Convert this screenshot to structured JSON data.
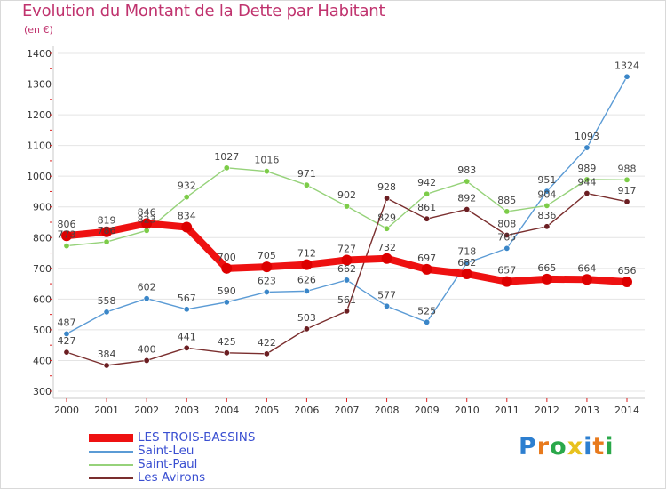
{
  "header": {
    "title": "Evolution du Montant de la Dette par Habitant",
    "subtitle": "(en €)"
  },
  "logo": {
    "text": "Proxiti",
    "letter_colors": [
      "#2d7fd0",
      "#e87a1d",
      "#2aa84a",
      "#e8c21d",
      "#2d7fd0",
      "#e87a1d",
      "#2aa84a"
    ]
  },
  "chart_data": {
    "type": "line",
    "x": [
      2000,
      2001,
      2002,
      2003,
      2004,
      2005,
      2006,
      2007,
      2008,
      2009,
      2010,
      2011,
      2012,
      2013,
      2014
    ],
    "ylim": [
      300,
      1400
    ],
    "yticks": [
      300,
      400,
      500,
      600,
      700,
      800,
      900,
      1000,
      1100,
      1200,
      1300,
      1400
    ],
    "grid": true,
    "legend_position": "bottom-left",
    "series": [
      {
        "name": "Saint-Leu",
        "color": "#5b9bd5",
        "point_color": "#3a86c8",
        "values": [
          487,
          558,
          602,
          567,
          590,
          623,
          626,
          662,
          577,
          525,
          718,
          765,
          951,
          1093,
          1324
        ],
        "labels": [
          "487",
          "558",
          "602",
          "567",
          "590",
          "623",
          "626",
          "662",
          "577",
          "525",
          "718",
          "765",
          "951",
          "1093",
          "1324"
        ]
      },
      {
        "name": "Saint-Paul",
        "color": "#96d27a",
        "point_color": "#7ccc48",
        "values": [
          773,
          786,
          823,
          932,
          1027,
          1016,
          971,
          902,
          829,
          942,
          983,
          885,
          904,
          989,
          988
        ],
        "labels": [
          "773",
          "786",
          "823",
          "932",
          "1027",
          "1016",
          "971",
          "902",
          "829",
          "942",
          "983",
          "885",
          "904",
          "989",
          "988"
        ]
      },
      {
        "name": "Les Avirons",
        "color": "#7a2e2e",
        "point_color": "#6b1e22",
        "values": [
          427,
          384,
          400,
          441,
          425,
          422,
          503,
          561,
          928,
          861,
          892,
          808,
          836,
          944,
          917
        ],
        "labels": [
          "427",
          "384",
          "400",
          "441",
          "425",
          "422",
          "503",
          "561",
          "928",
          "861",
          "892",
          "808",
          "836",
          "944",
          "917"
        ]
      },
      {
        "name": "LES TROIS-BASSINS",
        "color": "#ee1111",
        "point_color": "#dd0000",
        "values": [
          806,
          819,
          846,
          834,
          700,
          705,
          712,
          727,
          732,
          697,
          682,
          657,
          665,
          664,
          656
        ],
        "labels": [
          "806",
          "819",
          "846",
          "834",
          "700",
          "705",
          "712",
          "727",
          "732",
          "697",
          "682",
          "657",
          "665",
          "664",
          "656"
        ]
      }
    ],
    "legend_order": [
      "LES TROIS-BASSINS",
      "Saint-Leu",
      "Saint-Paul",
      "Les Avirons"
    ]
  }
}
